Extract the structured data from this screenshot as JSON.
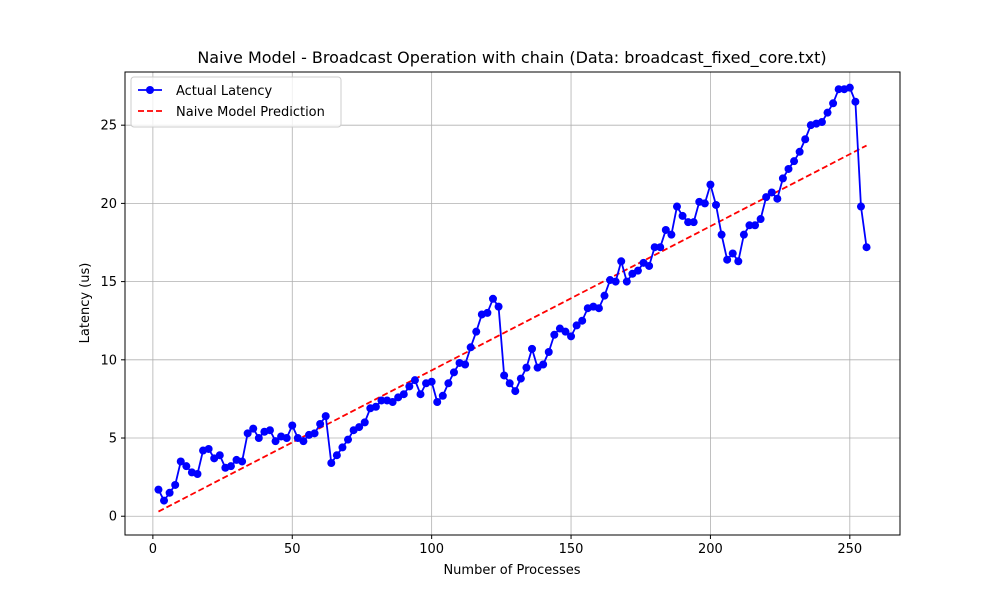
{
  "chart_data": {
    "type": "line",
    "title": "Naive Model - Broadcast Operation with chain (Data: broadcast_fixed_core.txt)",
    "xlabel": "Number of Processes",
    "ylabel": "Latency (us)",
    "xlim": [
      -10,
      268
    ],
    "ylim": [
      -1.2,
      28.4
    ],
    "xticks": [
      0,
      50,
      100,
      150,
      200,
      250
    ],
    "yticks": [
      0,
      5,
      10,
      15,
      20,
      25
    ],
    "grid": true,
    "legend_position": "upper-left",
    "series": [
      {
        "name": "Actual Latency",
        "color": "#0000ff",
        "style": "solid-with-circle-markers",
        "x": [
          2,
          4,
          6,
          8,
          10,
          12,
          14,
          16,
          18,
          20,
          22,
          24,
          26,
          28,
          30,
          32,
          34,
          36,
          38,
          40,
          42,
          44,
          46,
          48,
          50,
          52,
          54,
          56,
          58,
          60,
          62,
          64,
          66,
          68,
          70,
          72,
          74,
          76,
          78,
          80,
          82,
          84,
          86,
          88,
          90,
          92,
          94,
          96,
          98,
          100,
          102,
          104,
          106,
          108,
          110,
          112,
          114,
          116,
          118,
          120,
          122,
          124,
          126,
          128,
          130,
          132,
          134,
          136,
          138,
          140,
          142,
          144,
          146,
          148,
          150,
          152,
          154,
          156,
          158,
          160,
          162,
          164,
          166,
          168,
          170,
          172,
          174,
          176,
          178,
          180,
          182,
          184,
          186,
          188,
          190,
          192,
          194,
          196,
          198,
          200,
          202,
          204,
          206,
          208,
          210,
          212,
          214,
          216,
          218,
          220,
          222,
          224,
          226,
          228,
          230,
          232,
          234,
          236,
          238,
          240,
          242,
          244,
          246,
          248,
          250,
          252,
          254,
          256
        ],
        "y": [
          1.7,
          1.0,
          1.5,
          2.0,
          3.5,
          3.2,
          2.8,
          2.7,
          4.2,
          4.3,
          3.7,
          3.9,
          3.1,
          3.2,
          3.6,
          3.5,
          5.3,
          5.6,
          5.0,
          5.4,
          5.5,
          4.8,
          5.1,
          5.0,
          5.8,
          5.0,
          4.8,
          5.2,
          5.3,
          5.9,
          6.4,
          3.4,
          3.9,
          4.4,
          4.9,
          5.5,
          5.7,
          6.0,
          6.9,
          7.0,
          7.4,
          7.4,
          7.3,
          7.6,
          7.8,
          8.3,
          8.7,
          7.8,
          8.5,
          8.6,
          7.3,
          7.7,
          8.5,
          9.2,
          9.8,
          9.7,
          10.8,
          11.8,
          12.9,
          13.0,
          13.9,
          13.4,
          9.0,
          8.5,
          8.0,
          8.8,
          9.5,
          10.7,
          9.5,
          9.7,
          10.5,
          11.6,
          12.0,
          11.8,
          11.5,
          12.2,
          12.5,
          13.3,
          13.4,
          13.3,
          14.1,
          15.1,
          15.0,
          16.3,
          15.0,
          15.5,
          15.7,
          16.2,
          16.0,
          17.2,
          17.2,
          18.3,
          18.0,
          19.8,
          19.2,
          18.8,
          18.8,
          20.1,
          20.0,
          21.2,
          19.9,
          18.0,
          16.4,
          16.8,
          16.3,
          18.0,
          18.6,
          18.6,
          19.0,
          20.4,
          20.7,
          20.3,
          21.6,
          22.2,
          22.7,
          23.3,
          24.1,
          25.0,
          25.1,
          25.2,
          25.8,
          26.4,
          27.3,
          27.3,
          27.4,
          26.5,
          19.8,
          17.2
        ]
      },
      {
        "name": "Naive Model Prediction",
        "color": "#ff0000",
        "style": "dashed",
        "x": [
          2,
          256
        ],
        "y": [
          0.3,
          23.7
        ]
      }
    ]
  }
}
